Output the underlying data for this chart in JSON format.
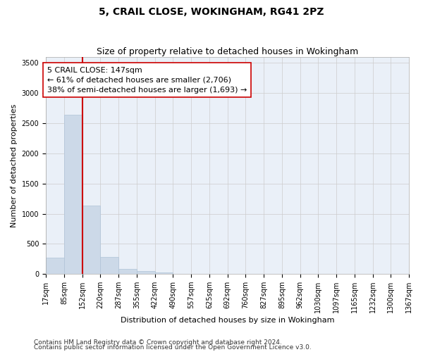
{
  "title": "5, CRAIL CLOSE, WOKINGHAM, RG41 2PZ",
  "subtitle": "Size of property relative to detached houses in Wokingham",
  "xlabel": "Distribution of detached houses by size in Wokingham",
  "ylabel": "Number of detached properties",
  "bar_color": "#ccd9e8",
  "bar_edge_color": "#b0c4d8",
  "vline_color": "#cc0000",
  "vline_x": 152,
  "annotation_text": "5 CRAIL CLOSE: 147sqm\n← 61% of detached houses are smaller (2,706)\n38% of semi-detached houses are larger (1,693) →",
  "bin_edges": [
    17,
    85,
    152,
    220,
    287,
    355,
    422,
    490,
    557,
    625,
    692,
    760,
    827,
    895,
    962,
    1030,
    1097,
    1165,
    1232,
    1300,
    1367
  ],
  "bin_counts": [
    270,
    2640,
    1130,
    285,
    85,
    55,
    25,
    5,
    0,
    0,
    0,
    0,
    0,
    0,
    0,
    0,
    0,
    0,
    0,
    0
  ],
  "ylim": [
    0,
    3600
  ],
  "yticks": [
    0,
    500,
    1000,
    1500,
    2000,
    2500,
    3000,
    3500
  ],
  "footnote1": "Contains HM Land Registry data © Crown copyright and database right 2024.",
  "footnote2": "Contains public sector information licensed under the Open Government Licence v3.0.",
  "background_color": "#ffffff",
  "plot_bg_color": "#eaf0f8",
  "grid_color": "#cccccc",
  "title_fontsize": 10,
  "subtitle_fontsize": 9,
  "axis_label_fontsize": 8,
  "tick_fontsize": 7,
  "annot_fontsize": 8,
  "footnote_fontsize": 6.5
}
